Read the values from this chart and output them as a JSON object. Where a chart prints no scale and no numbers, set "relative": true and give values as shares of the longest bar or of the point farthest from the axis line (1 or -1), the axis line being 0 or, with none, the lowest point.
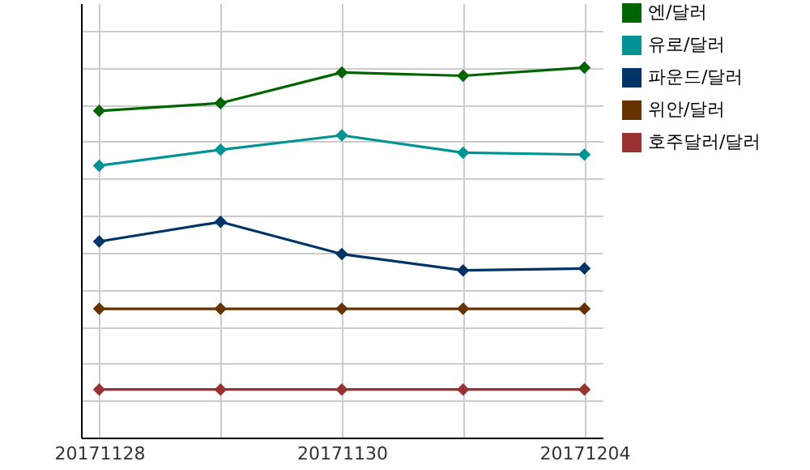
{
  "chart_data": {
    "type": "line",
    "relative": true,
    "categories": [
      "20171128",
      null,
      "20171130",
      null,
      "20171204"
    ],
    "series": [
      {
        "name": "엔/달러",
        "color": "#006400",
        "values": [
          0.883,
          0.904,
          0.987,
          0.978,
          1
        ]
      },
      {
        "name": "유로/달러",
        "color": "#009393",
        "values": [
          0.735,
          0.778,
          0.817,
          0.77,
          0.765
        ]
      },
      {
        "name": "파운드/달러",
        "color": "#003366",
        "values": [
          0.53,
          0.583,
          0.496,
          0.452,
          0.457
        ]
      },
      {
        "name": "위안/달러",
        "color": "#663300",
        "values": [
          0.348,
          0.348,
          0.348,
          0.348,
          0.348
        ]
      },
      {
        "name": "호주달러/달러",
        "color": "#993333",
        "values": [
          0.13,
          0.13,
          0.13,
          0.13,
          0.13
        ]
      }
    ],
    "grid": true,
    "legend": "right",
    "marker": "diamond",
    "line_style": "solid"
  }
}
